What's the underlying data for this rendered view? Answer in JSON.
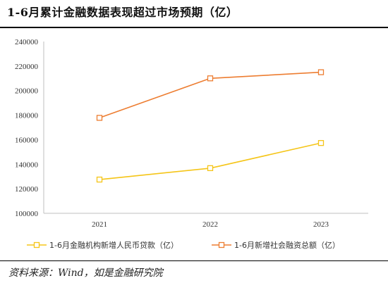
{
  "title": "1-6月累计金融数据表现超过市场预期（亿）",
  "source": "资料来源：Wind，如是金融研究院",
  "chart_data": {
    "type": "line",
    "categories": [
      "2021",
      "2022",
      "2023"
    ],
    "series": [
      {
        "name": "1-6月金融机构新增人民币贷款（亿）",
        "values": [
          127500,
          136800,
          157300
        ],
        "color": "#f5c518"
      },
      {
        "name": "1-6月新增社会融资总额（亿）",
        "values": [
          177800,
          210000,
          215000
        ],
        "color": "#ed7d31"
      }
    ],
    "ylim": [
      100000,
      240000
    ],
    "yticks": [
      "240000",
      "220000",
      "200000",
      "180000",
      "160000",
      "140000",
      "120000",
      "100000"
    ],
    "ytick_values": [
      240000,
      220000,
      200000,
      180000,
      160000,
      140000,
      120000,
      100000
    ],
    "grid": false,
    "legend_position": "bottom",
    "marker": "hollow-square"
  }
}
